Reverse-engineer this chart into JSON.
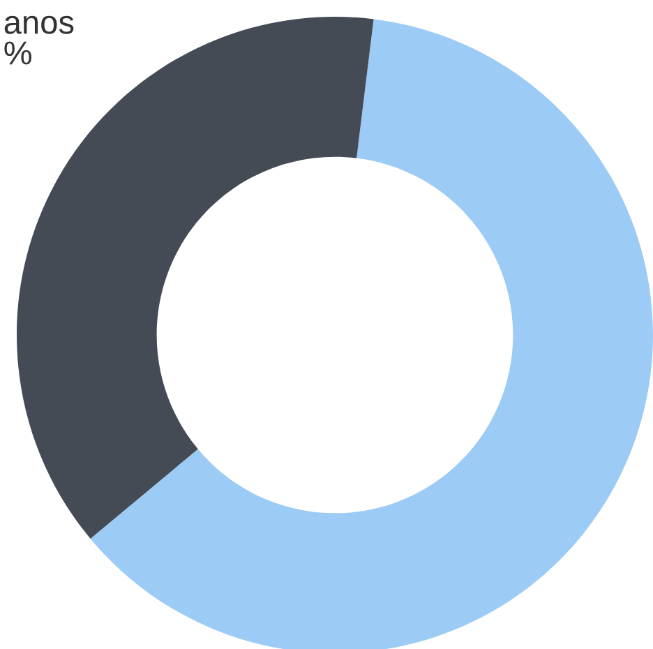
{
  "chart_data": {
    "type": "donut",
    "categories": [
      null,
      "anos"
    ],
    "values": [
      62,
      38
    ],
    "colors": [
      "#9ccbf5",
      "#454b55"
    ],
    "value_labels": [
      null,
      "%"
    ]
  }
}
